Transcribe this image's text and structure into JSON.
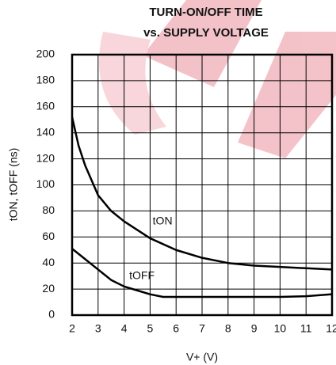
{
  "chart_data": {
    "type": "line",
    "title": "TURN-ON/OFF TIME",
    "subtitle": "vs. SUPPLY VOLTAGE",
    "x_label": "V+ (V)",
    "y_label": "tON, tOFF (ns)",
    "series": [
      {
        "name": "tON",
        "color": "#000000",
        "x": [
          2,
          2.25,
          2.5,
          3,
          3.5,
          4,
          5,
          6,
          7,
          8,
          9,
          10,
          11,
          12
        ],
        "values": [
          152,
          130,
          115,
          92,
          80,
          72,
          59,
          50,
          44,
          40,
          38,
          37,
          36,
          35
        ]
      },
      {
        "name": "tOFF",
        "color": "#000000",
        "x": [
          2,
          2.5,
          3,
          3.5,
          4,
          4.5,
          5,
          5.5,
          6,
          8,
          10,
          11,
          12
        ],
        "values": [
          51,
          43,
          35,
          27,
          22,
          19,
          16,
          14,
          14,
          14,
          14,
          14.5,
          16
        ]
      }
    ],
    "xlim": [
      2,
      12
    ],
    "xticks": [
      2,
      3,
      4,
      5,
      6,
      7,
      8,
      9,
      10,
      11,
      12
    ],
    "ylim": [
      0,
      200
    ],
    "yticks": [
      0,
      20,
      40,
      60,
      80,
      100,
      120,
      140,
      160,
      180,
      200
    ],
    "grid": true
  }
}
